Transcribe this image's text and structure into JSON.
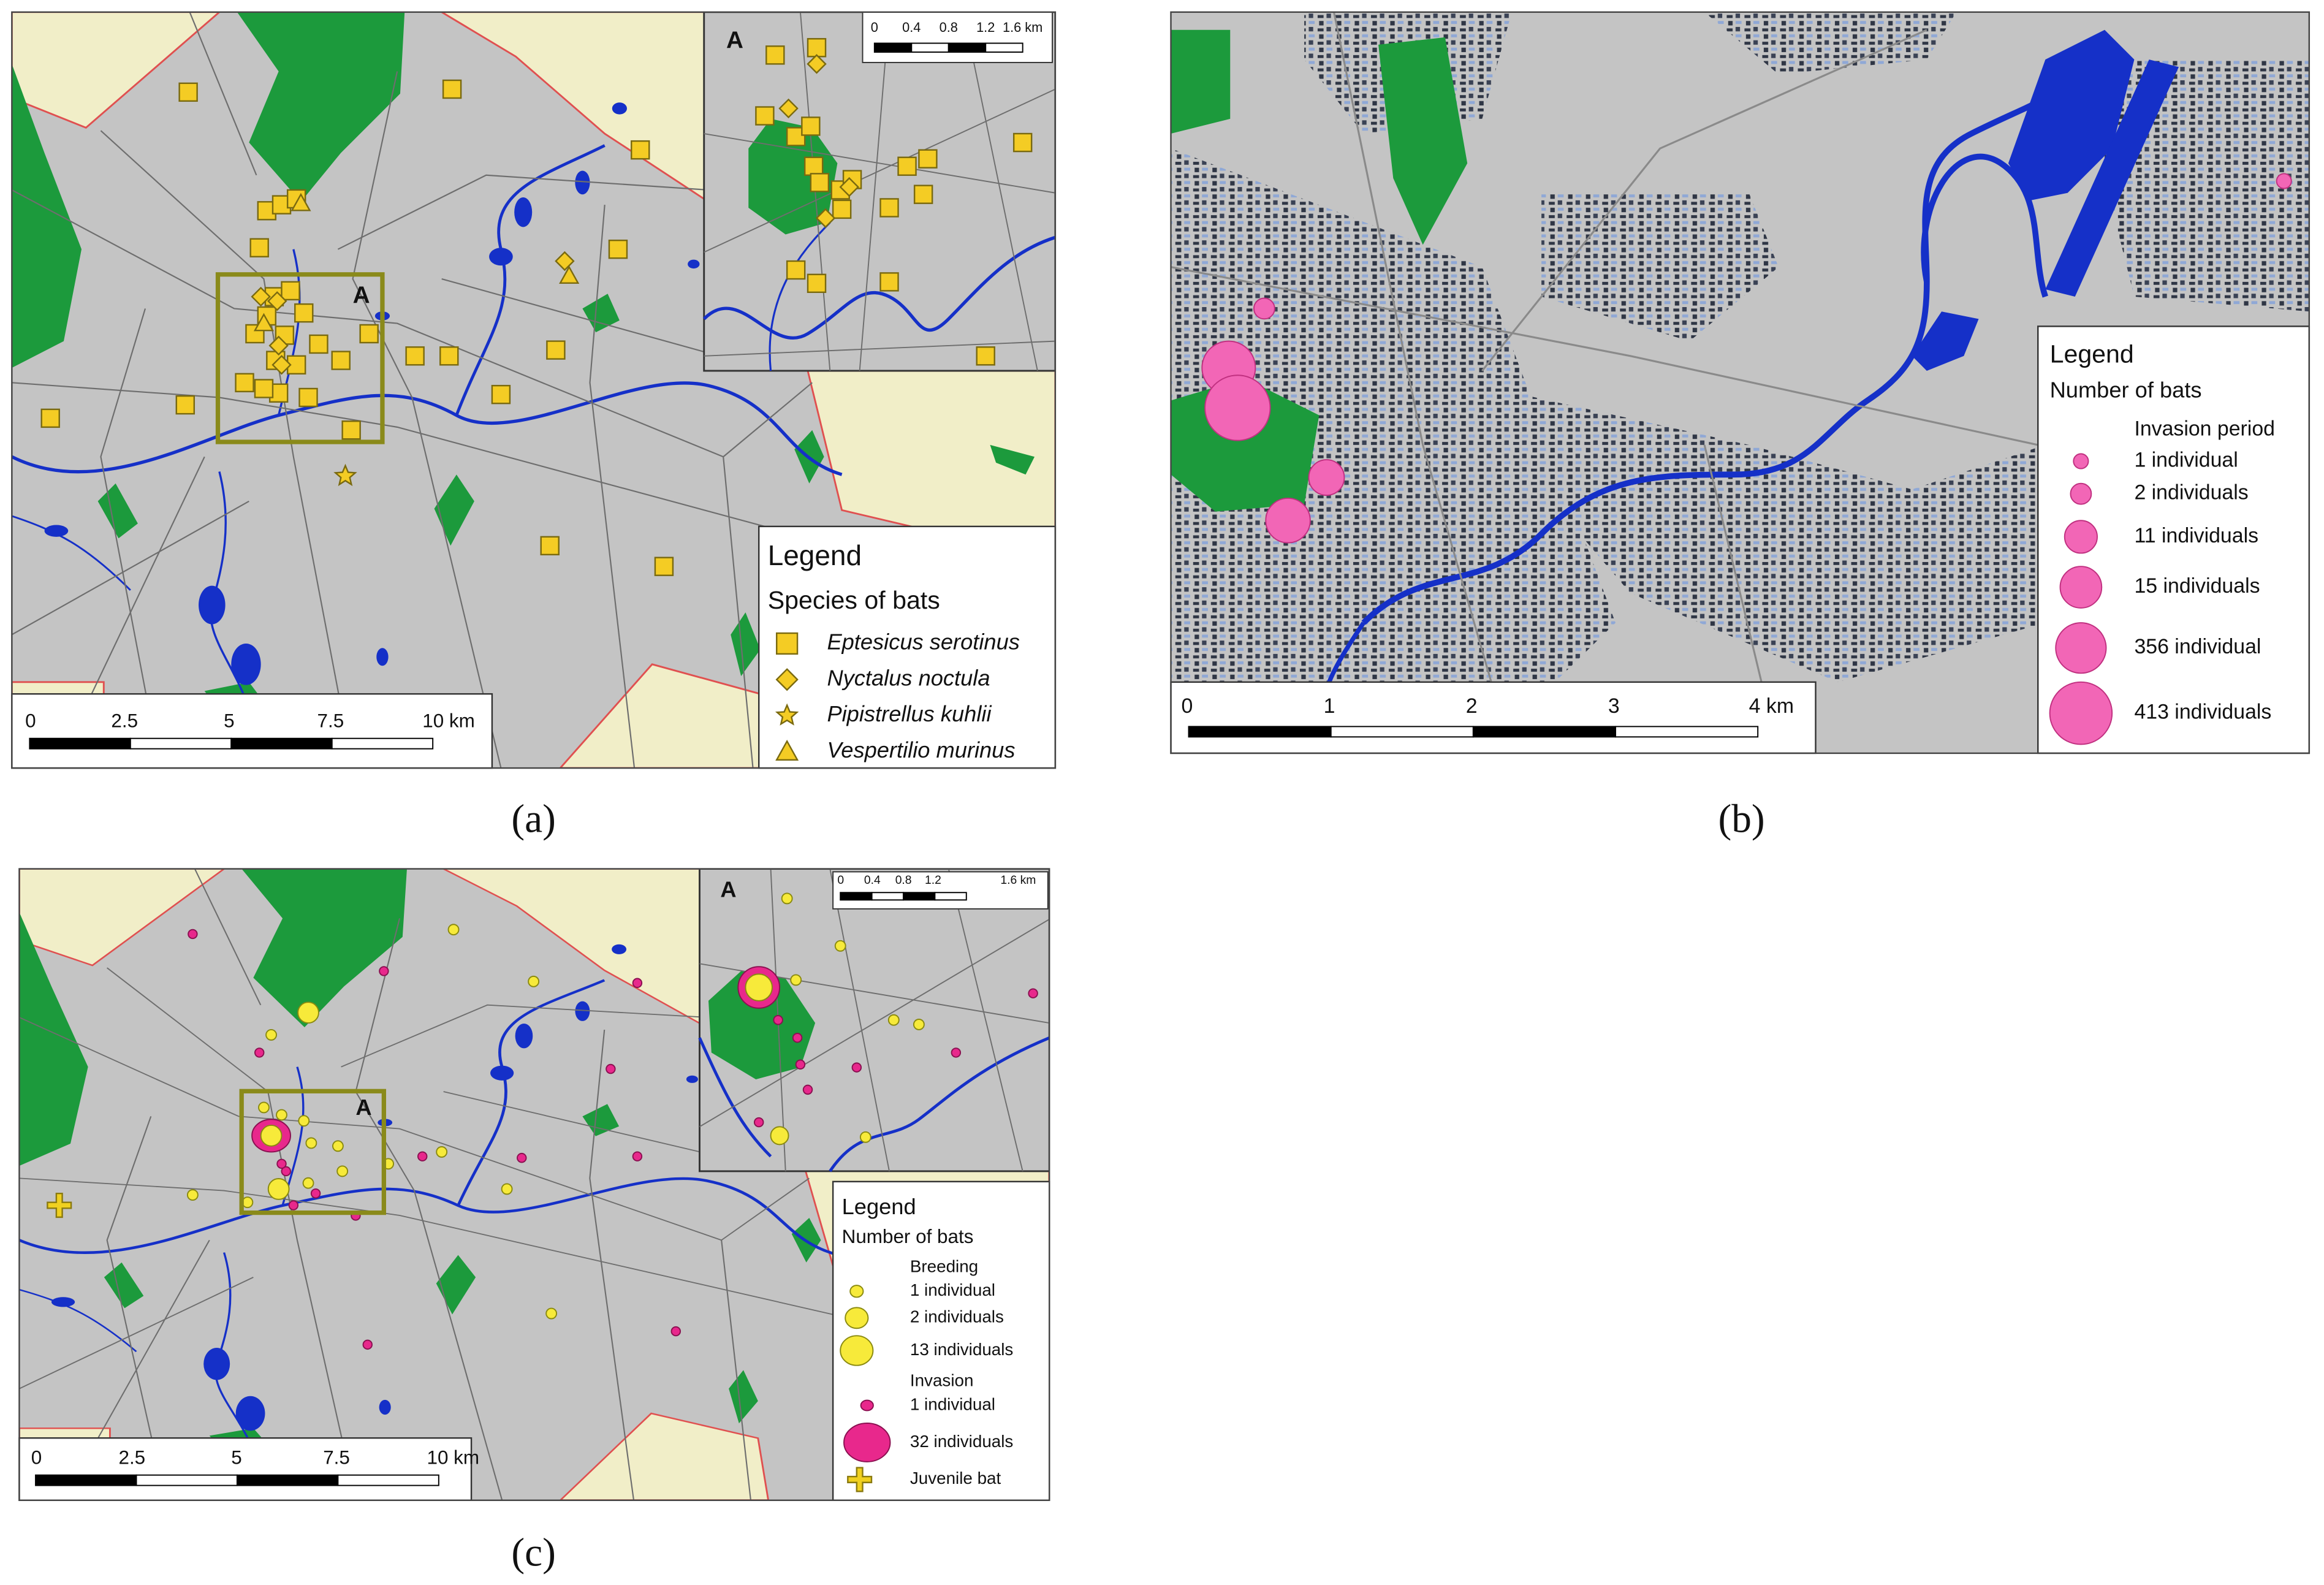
{
  "panels": [
    {
      "label": "(a)",
      "inset_label": "A",
      "legend": {
        "title": "Legend",
        "subtitle": "Species of bats",
        "entries": [
          "Eptesicus serotinus",
          "Nyctalus noctula",
          "Pipistrellus kuhlii",
          "Vespertilio murinus"
        ]
      },
      "scale_bar": [
        "0",
        "2.5",
        "5",
        "7.5",
        "10 km"
      ],
      "inset_scale_bar": [
        "0",
        "0.4",
        "0.8",
        "1.2",
        "1.6 km"
      ]
    },
    {
      "label": "(b)",
      "legend": {
        "title": "Legend",
        "subtitle": "Number of bats",
        "group": "Invasion period",
        "entries": [
          "1 individual",
          "2 individuals",
          "11 individuals",
          "15 individuals",
          "356 individual",
          "413 individuals"
        ]
      },
      "scale_bar": [
        "0",
        "1",
        "2",
        "3",
        "4 km"
      ]
    },
    {
      "label": "(c)",
      "inset_label": "A",
      "legend": {
        "title": "Legend",
        "subtitle": "Number of bats",
        "breeding": {
          "name": "Breeding",
          "entries": [
            "1 individual",
            "2 individuals",
            "13 individuals"
          ]
        },
        "invasion": {
          "name": "Invasion",
          "entries": [
            "1 individual",
            "32 individuals"
          ]
        },
        "juvenile": "Juvenile bat"
      },
      "scale_bar": [
        "0",
        "2.5",
        "5",
        "7.5",
        "10 km"
      ],
      "inset_scale_bar": [
        "0",
        "0.4",
        "0.8",
        "1.2",
        "1.6 km"
      ]
    }
  ]
}
